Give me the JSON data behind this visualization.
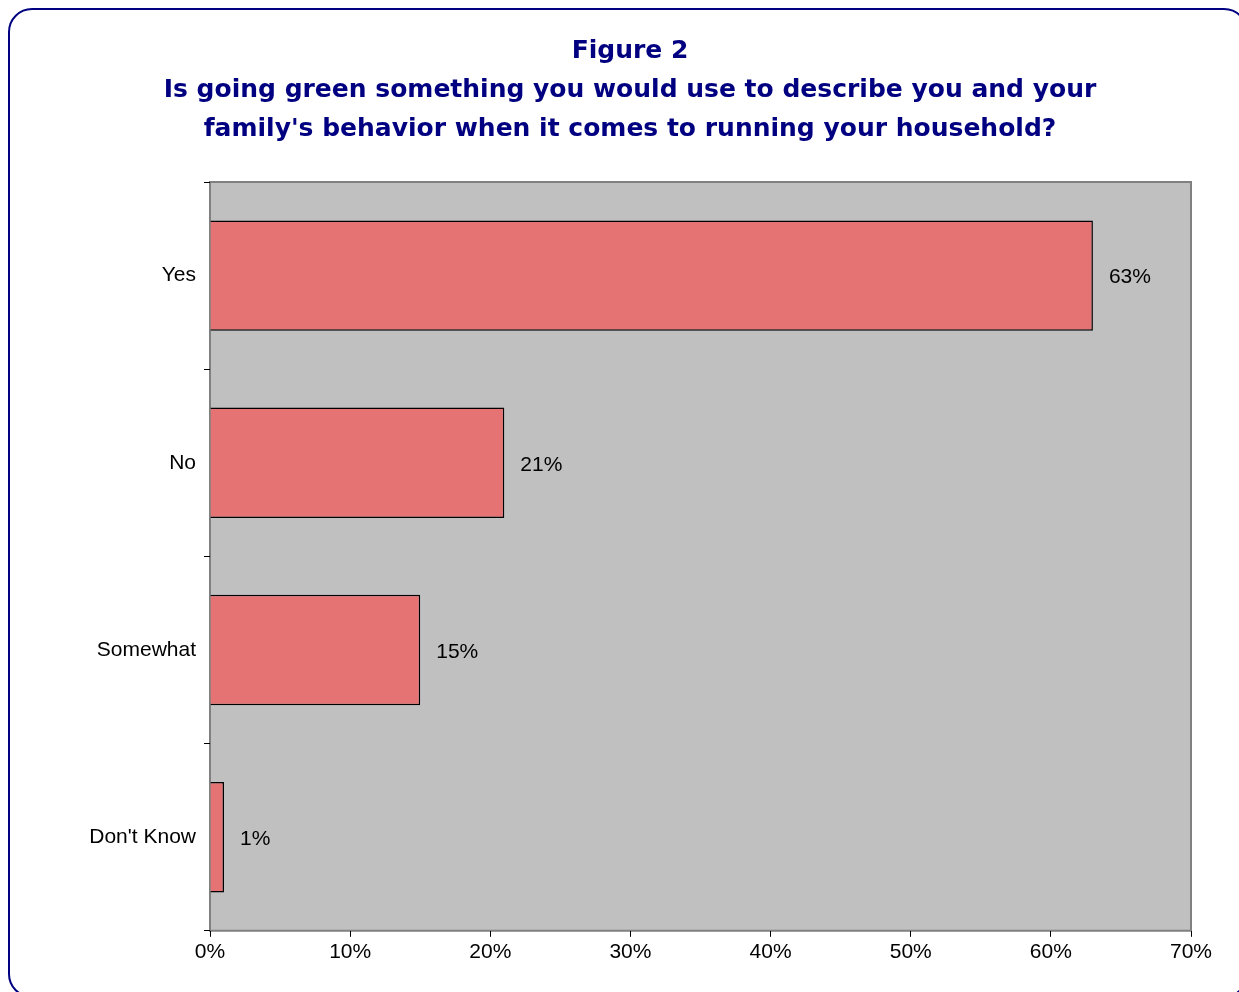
{
  "chart_data": {
    "type": "bar",
    "orientation": "horizontal",
    "title": "Figure 2",
    "subtitle": "Is going green something you would use to describe you and your family's behavior when it comes to running your household?",
    "categories": [
      "Yes",
      "No",
      "Somewhat",
      "Don't Know"
    ],
    "values": [
      63,
      21,
      15,
      1
    ],
    "value_labels": [
      "63%",
      "21%",
      "15%",
      "1%"
    ],
    "color": "#e57373",
    "xlim": [
      0,
      70
    ],
    "xticks": [
      {
        "value": 0,
        "label": "0%"
      },
      {
        "value": 10,
        "label": "10%"
      },
      {
        "value": 20,
        "label": "20%"
      },
      {
        "value": 30,
        "label": "30%"
      },
      {
        "value": 40,
        "label": "40%"
      },
      {
        "value": 50,
        "label": "50%"
      },
      {
        "value": 60,
        "label": "60%"
      },
      {
        "value": 70,
        "label": "70%"
      }
    ],
    "grid": false,
    "legend": false
  }
}
